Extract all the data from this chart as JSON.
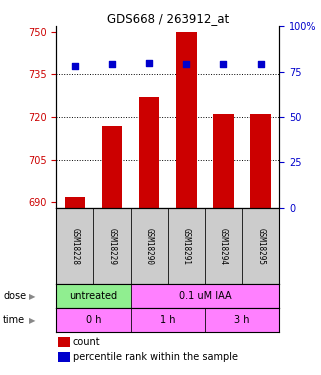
{
  "title": "GDS668 / 263912_at",
  "samples": [
    "GSM18228",
    "GSM18229",
    "GSM18290",
    "GSM18291",
    "GSM18294",
    "GSM18295"
  ],
  "bar_values": [
    692,
    717,
    727,
    750,
    721,
    721
  ],
  "dot_values": [
    78,
    79,
    80,
    79,
    79,
    79
  ],
  "bar_color": "#cc0000",
  "dot_color": "#0000cc",
  "ylim_left": [
    688,
    752
  ],
  "yticks_left": [
    690,
    705,
    720,
    735,
    750
  ],
  "ylim_right": [
    0,
    100
  ],
  "yticks_right": [
    0,
    25,
    50,
    75,
    100
  ],
  "hlines": [
    705,
    720,
    735
  ],
  "dose_labels": [
    {
      "text": "untreated",
      "start": 0,
      "end": 2,
      "color": "#90ee90"
    },
    {
      "text": "0.1 uM IAA",
      "start": 2,
      "end": 6,
      "color": "#ff80ff"
    }
  ],
  "time_labels": [
    {
      "text": "0 h",
      "start": 0,
      "end": 2,
      "color": "#ff80ff"
    },
    {
      "text": "1 h",
      "start": 2,
      "end": 4,
      "color": "#ff80ff"
    },
    {
      "text": "3 h",
      "start": 4,
      "end": 6,
      "color": "#ff80ff"
    }
  ],
  "left_axis_color": "#cc0000",
  "right_axis_color": "#0000cc",
  "sample_bg_color": "#cccccc",
  "legend_count_color": "#cc0000",
  "legend_pct_color": "#0000cc"
}
